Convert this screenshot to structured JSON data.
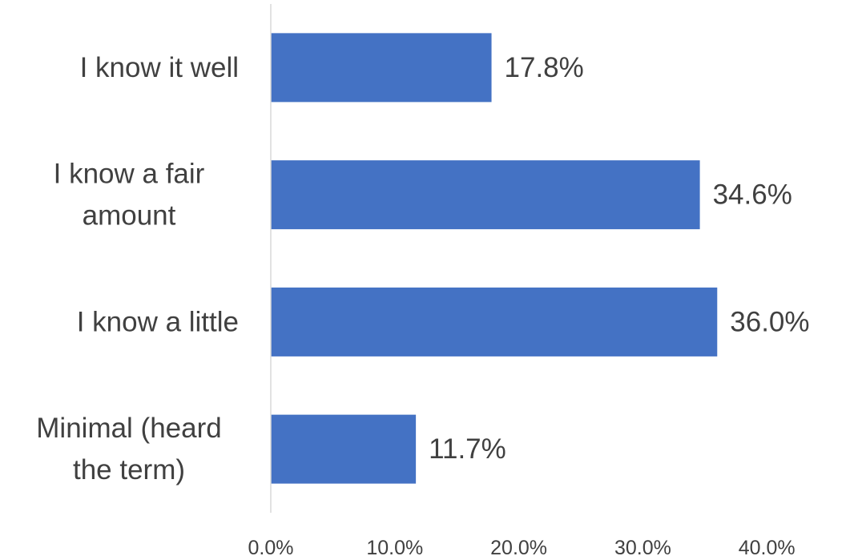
{
  "chart_data": {
    "type": "bar",
    "orientation": "horizontal",
    "categories": [
      [
        "I know it well"
      ],
      [
        "I know a fair",
        "amount"
      ],
      [
        "I know a little"
      ],
      [
        "Minimal (heard",
        "the term)"
      ]
    ],
    "values": [
      17.8,
      34.6,
      36.0,
      11.7
    ],
    "data_labels": [
      "17.8%",
      "34.6%",
      "36.0%",
      "11.7%"
    ],
    "xlim": [
      0,
      40
    ],
    "xticks": [
      0,
      10,
      20,
      30,
      40
    ],
    "xtick_labels": [
      "0.0%",
      "10.0%",
      "20.0%",
      "30.0%",
      "40.0%"
    ],
    "title": "",
    "xlabel": "",
    "ylabel": "",
    "grid": false,
    "legend": "none",
    "bar_color": "#4472C4",
    "axis_color": "#D9D9D9",
    "text_color": "#404040"
  }
}
